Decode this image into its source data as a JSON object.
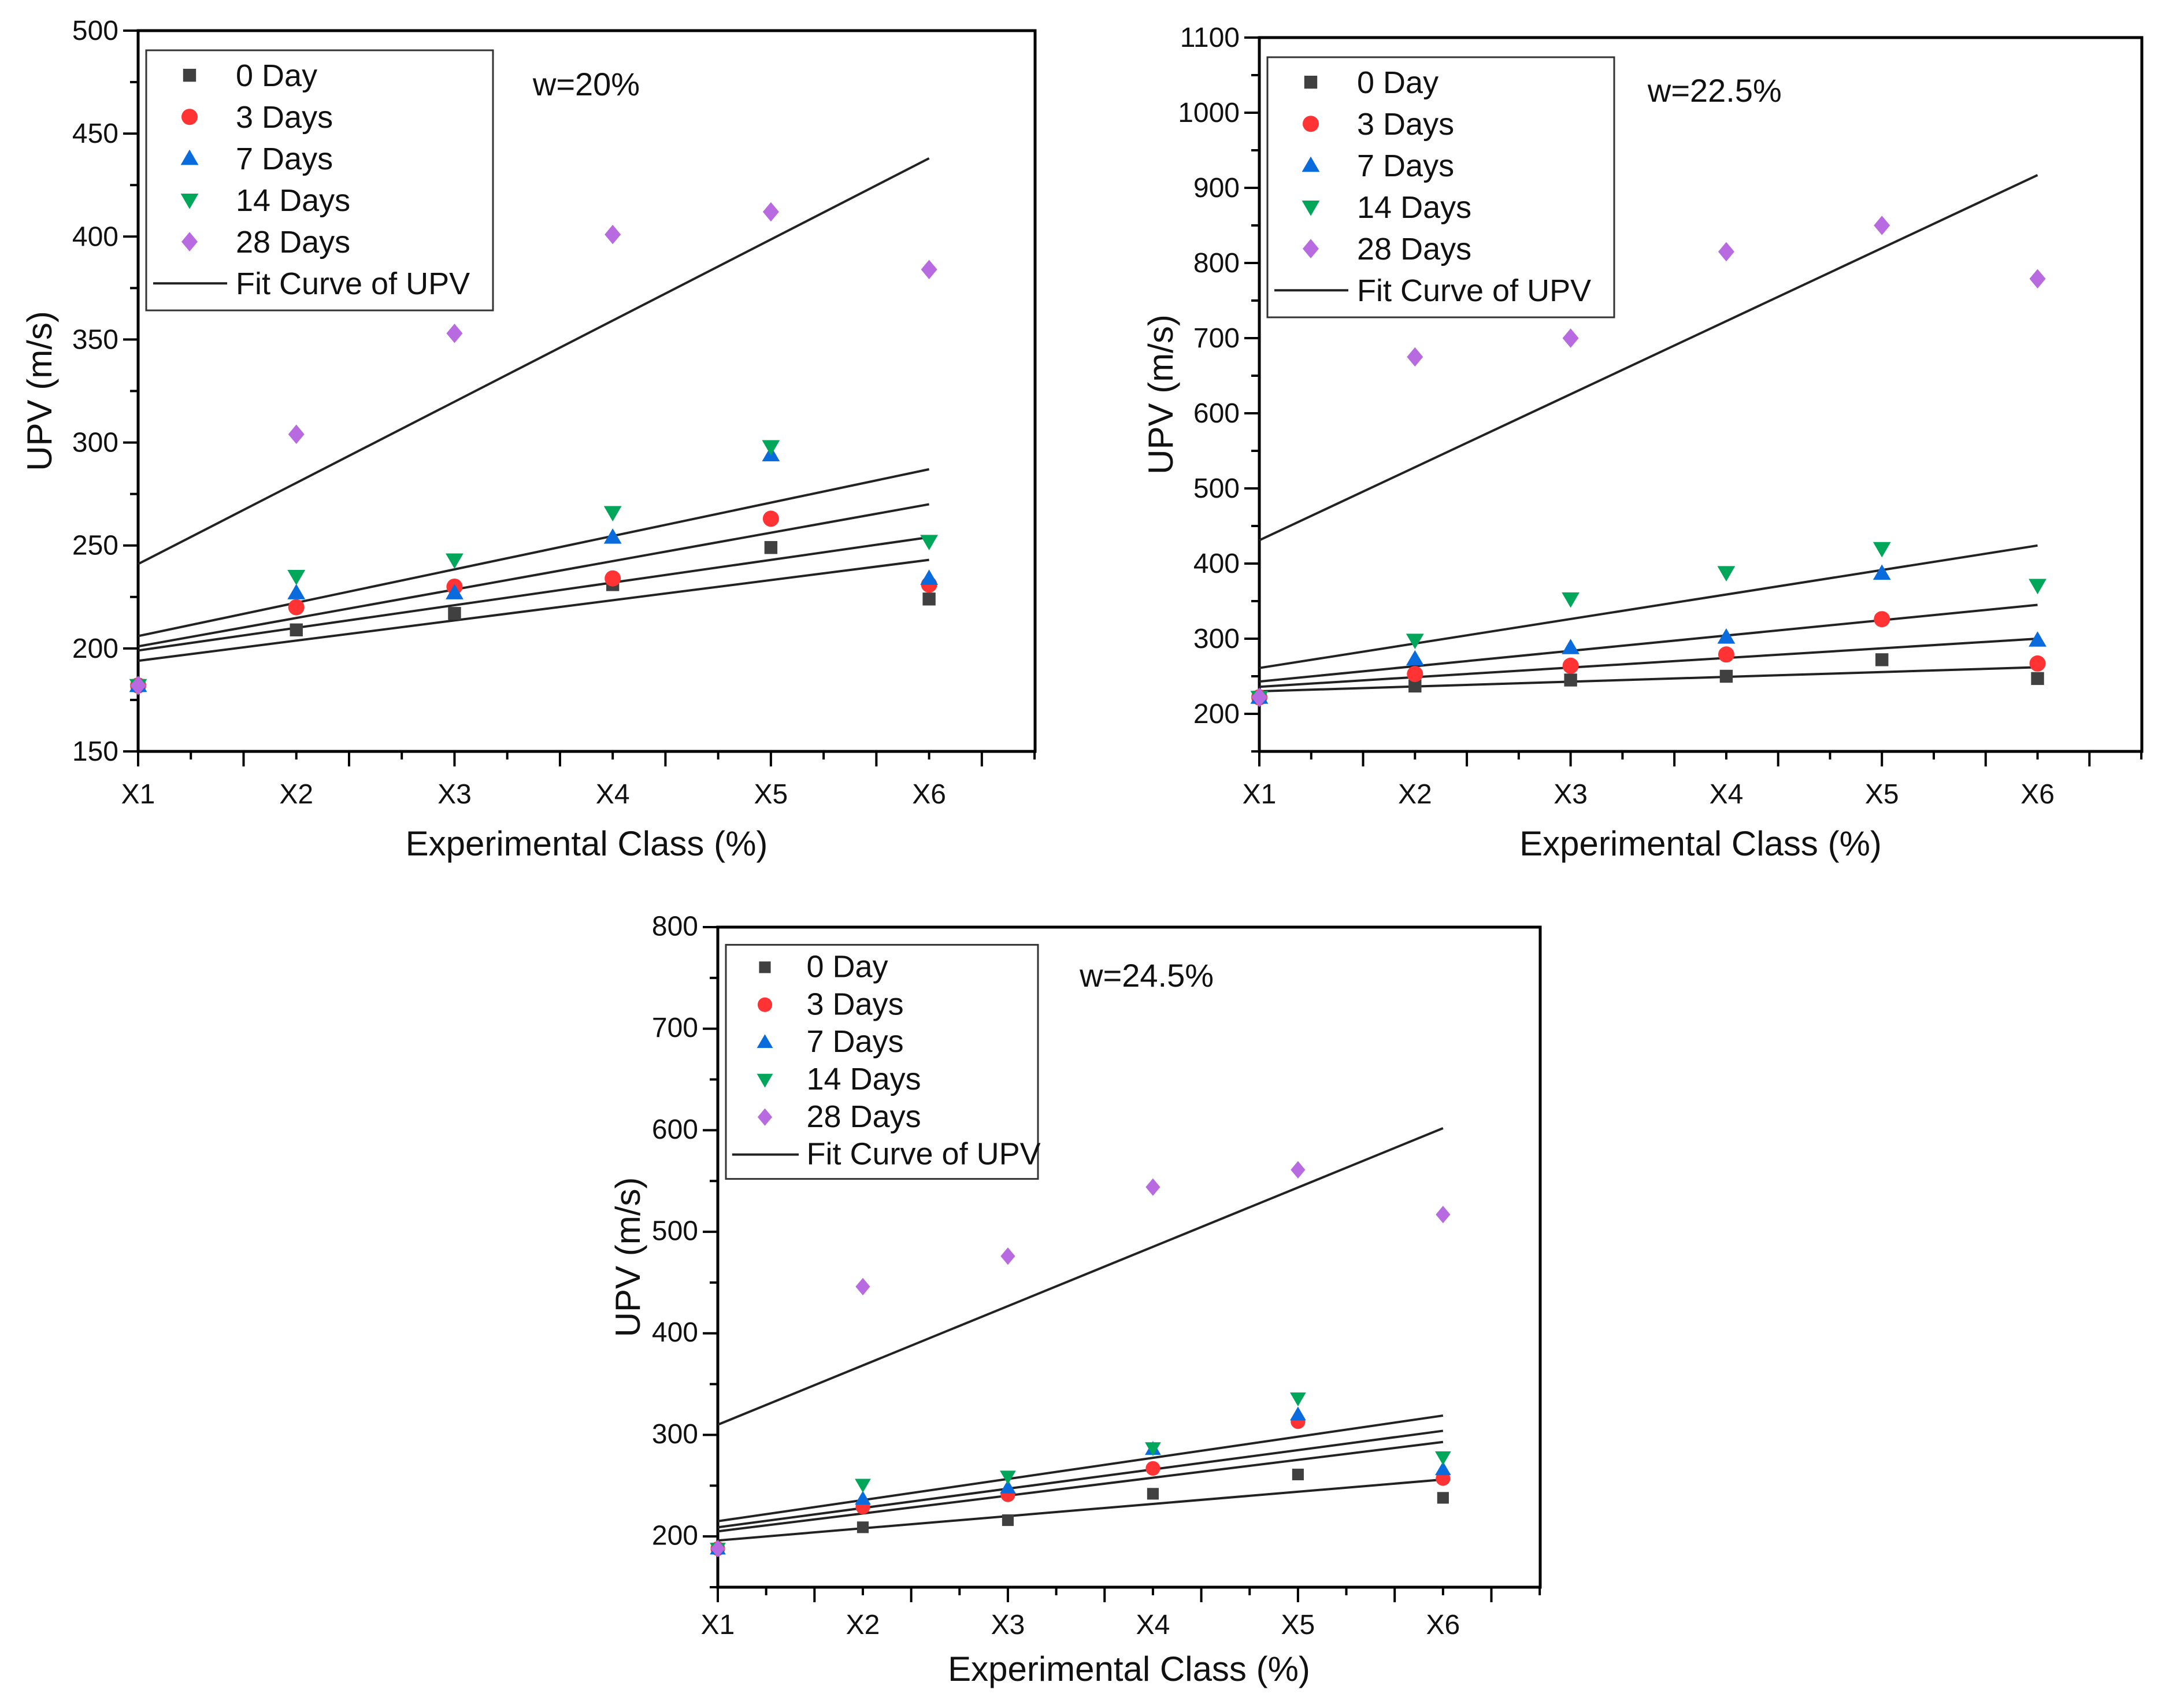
{
  "chart_data": [
    {
      "type": "scatter",
      "title": "w=20%",
      "xlabel": "Experimental Class (%)",
      "ylabel": "UPV (m/s)",
      "categories": [
        "X1",
        "X2",
        "X3",
        "X4",
        "X5",
        "X6"
      ],
      "ylim": [
        150,
        500
      ],
      "yticks": [
        "150",
        "200",
        "250",
        "300",
        "350",
        "400",
        "450",
        "500"
      ],
      "ystep": 50,
      "fit_label": "Fit Curve of UPV",
      "series": [
        {
          "name": "0 Day",
          "marker": "square",
          "color": "#404040",
          "values": [
            182,
            209,
            217,
            231,
            249,
            224
          ],
          "fit": [
            194,
            243
          ]
        },
        {
          "name": "3 Days",
          "marker": "circle",
          "color": "#ff3333",
          "values": [
            182,
            220,
            230,
            234,
            263,
            231
          ],
          "fit": [
            199,
            254
          ]
        },
        {
          "name": "7 Days",
          "marker": "triangle-up",
          "color": "#0a6bdc",
          "values": [
            182,
            227,
            227,
            254,
            294,
            234
          ],
          "fit": [
            201,
            270
          ]
        },
        {
          "name": "14 Days",
          "marker": "triangle-down",
          "color": "#00a65a",
          "values": [
            182,
            235,
            243,
            266,
            298,
            252
          ],
          "fit": [
            206,
            287
          ]
        },
        {
          "name": "28 Days",
          "marker": "diamond",
          "color": "#b86ae0",
          "values": [
            182,
            304,
            353,
            401,
            412,
            384
          ],
          "fit": [
            241,
            438
          ]
        }
      ]
    },
    {
      "type": "scatter",
      "title": "w=22.5%",
      "xlabel": "Experimental Class (%)",
      "ylabel": "UPV (m/s)",
      "categories": [
        "X1",
        "X2",
        "X3",
        "X4",
        "X5",
        "X6"
      ],
      "ylim": [
        150,
        1100
      ],
      "yticks": [
        "200",
        "300",
        "400",
        "500",
        "600",
        "700",
        "800",
        "900",
        "1000",
        "1100"
      ],
      "ystep": 100,
      "fit_label": "Fit Curve of UPV",
      "series": [
        {
          "name": "0 Day",
          "marker": "square",
          "color": "#404040",
          "values": [
            222,
            237,
            245,
            250,
            272,
            247
          ],
          "fit": [
            230,
            262
          ]
        },
        {
          "name": "3 Days",
          "marker": "circle",
          "color": "#ff3333",
          "values": [
            222,
            253,
            264,
            279,
            326,
            267
          ],
          "fit": [
            236,
            300
          ]
        },
        {
          "name": "7 Days",
          "marker": "triangle-up",
          "color": "#0a6bdc",
          "values": [
            222,
            273,
            288,
            302,
            387,
            298
          ],
          "fit": [
            243,
            345
          ]
        },
        {
          "name": "14 Days",
          "marker": "triangle-down",
          "color": "#00a65a",
          "values": [
            222,
            298,
            353,
            388,
            420,
            371
          ],
          "fit": [
            261,
            424
          ]
        },
        {
          "name": "28 Days",
          "marker": "diamond",
          "color": "#b86ae0",
          "values": [
            222,
            675,
            700,
            815,
            850,
            779
          ],
          "fit": [
            431,
            917
          ]
        }
      ]
    },
    {
      "type": "scatter",
      "title": "w=24.5%",
      "xlabel": "Experimental Class (%)",
      "ylabel": "UPV (m/s)",
      "categories": [
        "X1",
        "X2",
        "X3",
        "X4",
        "X5",
        "X6"
      ],
      "ylim": [
        150,
        800
      ],
      "yticks": [
        "200",
        "300",
        "400",
        "500",
        "600",
        "700",
        "800"
      ],
      "ystep": 100,
      "fit_label": "Fit Curve of UPV",
      "series": [
        {
          "name": "0 Day",
          "marker": "square",
          "color": "#404040",
          "values": [
            188,
            209,
            216,
            242,
            261,
            238
          ],
          "fit": [
            196,
            256
          ]
        },
        {
          "name": "3 Days",
          "marker": "circle",
          "color": "#ff3333",
          "values": [
            188,
            229,
            241,
            267,
            313,
            257
          ],
          "fit": [
            205,
            293
          ]
        },
        {
          "name": "7 Days",
          "marker": "triangle-up",
          "color": "#0a6bdc",
          "values": [
            188,
            237,
            248,
            286,
            320,
            266
          ],
          "fit": [
            209,
            304
          ]
        },
        {
          "name": "14 Days",
          "marker": "triangle-down",
          "color": "#00a65a",
          "values": [
            188,
            251,
            259,
            287,
            336,
            278
          ],
          "fit": [
            215,
            319
          ]
        },
        {
          "name": "28 Days",
          "marker": "diamond",
          "color": "#b86ae0",
          "values": [
            188,
            446,
            476,
            544,
            561,
            517
          ],
          "fit": [
            310,
            602
          ]
        }
      ]
    }
  ]
}
